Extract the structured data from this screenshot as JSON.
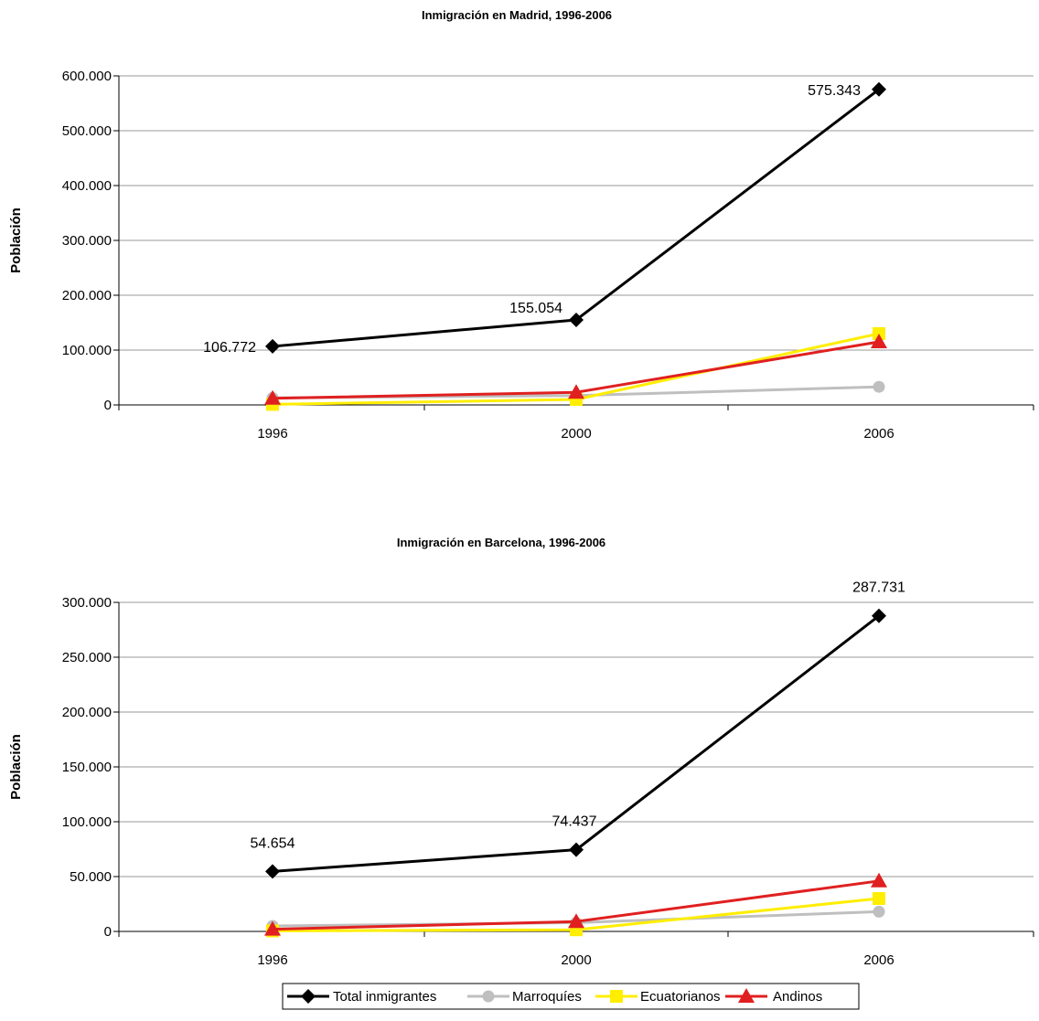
{
  "chart_data": [
    {
      "type": "line",
      "title": "Inmigración en Madrid, 1996-2006",
      "ylabel": "Población",
      "xlabel": "",
      "categories": [
        "1996",
        "2000",
        "2006"
      ],
      "ylim": [
        0,
        600000
      ],
      "yticks": [
        0,
        100000,
        200000,
        300000,
        400000,
        500000,
        600000
      ],
      "ytick_labels": [
        "0",
        "100.000",
        "200.000",
        "300.000",
        "400.000",
        "500.000",
        "600.000"
      ],
      "grid": true,
      "series": [
        {
          "name": "Total inmigrantes",
          "values": [
            106772,
            155054,
            575343
          ],
          "labels": [
            "106.772",
            "155.054",
            "575.343"
          ]
        },
        {
          "name": "Marroquíes",
          "values": [
            13000,
            17000,
            33000
          ]
        },
        {
          "name": "Ecuatorianos",
          "values": [
            1000,
            10000,
            130000
          ]
        },
        {
          "name": "Andinos",
          "values": [
            12000,
            23000,
            115000
          ]
        }
      ]
    },
    {
      "type": "line",
      "title": "Inmigración en Barcelona, 1996-2006",
      "ylabel": "Población",
      "xlabel": "",
      "categories": [
        "1996",
        "2000",
        "2006"
      ],
      "ylim": [
        0,
        300000
      ],
      "yticks": [
        0,
        50000,
        100000,
        150000,
        200000,
        250000,
        300000
      ],
      "ytick_labels": [
        "0",
        "50.000",
        "100.000",
        "150.000",
        "200.000",
        "250.000",
        "300.000"
      ],
      "grid": true,
      "series": [
        {
          "name": "Total inmigrantes",
          "values": [
            54654,
            74437,
            287731
          ],
          "labels": [
            "54.654",
            "74.437",
            "287.731"
          ]
        },
        {
          "name": "Marroquíes",
          "values": [
            5000,
            8000,
            18000
          ]
        },
        {
          "name": "Ecuatorianos",
          "values": [
            500,
            1500,
            30000
          ]
        },
        {
          "name": "Andinos",
          "values": [
            2000,
            9000,
            46000
          ]
        }
      ]
    }
  ],
  "legend": {
    "position": "bottom",
    "items": [
      {
        "name": "Total inmigrantes",
        "color": "#000000",
        "marker": "diamond"
      },
      {
        "name": "Marroquíes",
        "color": "#bfbfbf",
        "marker": "circle"
      },
      {
        "name": "Ecuatorianos",
        "color": "#ffee00",
        "marker": "square"
      },
      {
        "name": "Andinos",
        "color": "#e02020",
        "marker": "triangle"
      }
    ]
  },
  "series_style": [
    {
      "color": "#000000",
      "marker": "diamond",
      "marker_color": "#000000"
    },
    {
      "color": "#bfbfbf",
      "marker": "circle",
      "marker_color": "#bfbfbf"
    },
    {
      "color": "#ffee00",
      "marker": "square",
      "marker_color": "#ffee00"
    },
    {
      "color": "#e02020",
      "marker": "triangle",
      "marker_color": "#e02020"
    }
  ]
}
